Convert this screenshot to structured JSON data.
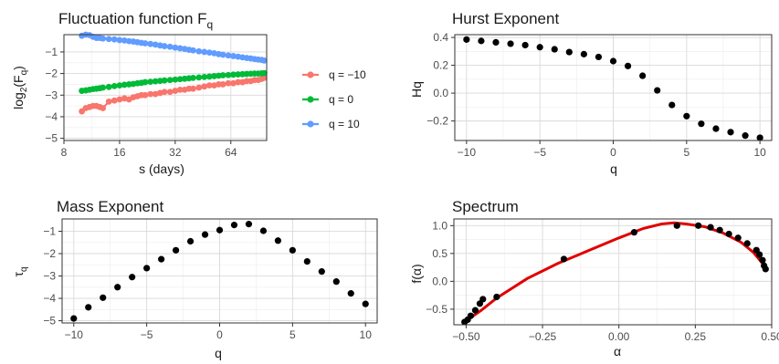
{
  "chart_data": [
    {
      "id": "fluct",
      "type": "scatter",
      "title": "Fluctuation function F",
      "title_sub": "q",
      "xlabel": "s (days)",
      "ylabel_main": "log",
      "ylabel_sub": "2",
      "ylabel_rest": "(F",
      "ylabel_sub2": "q",
      "ylabel_end": ")",
      "x_scale": "log2",
      "xlim": [
        8,
        100
      ],
      "ylim": [
        -5.1,
        -0.2
      ],
      "x_ticks": [
        8,
        16,
        32,
        64
      ],
      "x_tick_labels": [
        "8",
        "16",
        "32",
        "64"
      ],
      "y_ticks": [
        -5,
        -4,
        -3,
        -2,
        -1
      ],
      "y_tick_labels": [
        "−5",
        "−4",
        "−3",
        "−2",
        "−1"
      ],
      "grid": true,
      "legend_position": "right",
      "series": [
        {
          "name": "q = −10",
          "color": "#F8766D",
          "x": [
            10,
            10.5,
            11,
            11.5,
            12,
            12.5,
            13,
            14,
            15,
            16,
            17,
            18,
            19,
            20,
            21,
            22,
            23.5,
            25,
            26.5,
            28,
            30,
            32,
            34,
            36,
            38,
            40,
            43,
            46,
            49,
            52,
            55,
            58,
            62,
            66,
            70,
            74,
            78,
            82,
            86,
            90,
            94,
            97
          ],
          "y": [
            -3.75,
            -3.6,
            -3.55,
            -3.5,
            -3.5,
            -3.55,
            -3.6,
            -3.3,
            -3.25,
            -3.2,
            -3.15,
            -3.2,
            -3.1,
            -3.05,
            -3.0,
            -3.0,
            -2.95,
            -2.95,
            -2.9,
            -2.85,
            -2.85,
            -2.8,
            -2.75,
            -2.75,
            -2.7,
            -2.7,
            -2.65,
            -2.6,
            -2.55,
            -2.55,
            -2.5,
            -2.5,
            -2.45,
            -2.45,
            -2.4,
            -2.4,
            -2.35,
            -2.35,
            -2.3,
            -2.3,
            -2.25,
            -2.2
          ]
        },
        {
          "name": "q = 0",
          "color": "#00BA38",
          "x": [
            10,
            10.5,
            11,
            11.5,
            12,
            12.5,
            13,
            14,
            15,
            16,
            17,
            18,
            19,
            20,
            21,
            22,
            23.5,
            25,
            26.5,
            28,
            30,
            32,
            34,
            36,
            38,
            40,
            43,
            46,
            49,
            52,
            55,
            58,
            62,
            66,
            70,
            74,
            78,
            82,
            86,
            90,
            94,
            97
          ],
          "y": [
            -2.8,
            -2.78,
            -2.75,
            -2.72,
            -2.7,
            -2.68,
            -2.65,
            -2.62,
            -2.58,
            -2.55,
            -2.52,
            -2.5,
            -2.48,
            -2.45,
            -2.43,
            -2.4,
            -2.38,
            -2.36,
            -2.34,
            -2.32,
            -2.3,
            -2.28,
            -2.26,
            -2.24,
            -2.22,
            -2.2,
            -2.18,
            -2.16,
            -2.14,
            -2.12,
            -2.1,
            -2.08,
            -2.07,
            -2.05,
            -2.04,
            -2.03,
            -2.02,
            -2.01,
            -2.0,
            -2.0,
            -1.99,
            -1.98
          ]
        },
        {
          "name": "q = 10",
          "color": "#619CFF",
          "x": [
            10,
            10.5,
            11,
            11.5,
            12,
            12.5,
            13,
            14,
            15,
            16,
            17,
            18,
            19,
            20,
            21,
            22,
            23.5,
            25,
            26.5,
            28,
            30,
            32,
            34,
            36,
            38,
            40,
            43,
            46,
            49,
            52,
            55,
            58,
            62,
            66,
            70,
            74,
            78,
            82,
            86,
            90,
            94,
            97
          ],
          "y": [
            -0.25,
            -0.2,
            -0.22,
            -0.3,
            -0.35,
            -0.35,
            -0.38,
            -0.4,
            -0.42,
            -0.45,
            -0.47,
            -0.5,
            -0.52,
            -0.55,
            -0.58,
            -0.6,
            -0.63,
            -0.66,
            -0.7,
            -0.73,
            -0.76,
            -0.8,
            -0.83,
            -0.86,
            -0.9,
            -0.93,
            -0.97,
            -1.0,
            -1.03,
            -1.06,
            -1.1,
            -1.13,
            -1.16,
            -1.19,
            -1.22,
            -1.25,
            -1.28,
            -1.3,
            -1.33,
            -1.35,
            -1.37,
            -1.4
          ]
        }
      ]
    },
    {
      "id": "hurst",
      "type": "scatter",
      "title": "Hurst Exponent",
      "xlabel": "q",
      "ylabel": "Hq",
      "xlim": [
        -10.8,
        10.8
      ],
      "ylim": [
        -0.34,
        0.42
      ],
      "x_ticks": [
        -10,
        -5,
        0,
        5,
        10
      ],
      "x_tick_labels": [
        "−10",
        "−5",
        "0",
        "5",
        "10"
      ],
      "y_ticks": [
        -0.2,
        0.0,
        0.2,
        0.4
      ],
      "y_tick_labels": [
        "−0.2",
        "0.0",
        "0.2",
        "0.4"
      ],
      "grid": true,
      "color": "#000000",
      "x": [
        -10,
        -9,
        -8,
        -7,
        -6,
        -5,
        -4,
        -3,
        -2,
        -1,
        0,
        1,
        2,
        3,
        4,
        5,
        6,
        7,
        8,
        9,
        10
      ],
      "y": [
        0.385,
        0.375,
        0.365,
        0.355,
        0.345,
        0.33,
        0.315,
        0.295,
        0.28,
        0.26,
        0.23,
        0.195,
        0.125,
        0.02,
        -0.085,
        -0.165,
        -0.22,
        -0.255,
        -0.28,
        -0.305,
        -0.32
      ]
    },
    {
      "id": "mass",
      "type": "scatter",
      "title": "Mass Exponent",
      "xlabel": "q",
      "ylabel_main": "τ",
      "ylabel_sub": "q",
      "xlim": [
        -10.8,
        10.8
      ],
      "ylim": [
        -5.1,
        -0.45
      ],
      "x_ticks": [
        -10,
        -5,
        0,
        5,
        10
      ],
      "x_tick_labels": [
        "−10",
        "−5",
        "0",
        "5",
        "10"
      ],
      "y_ticks": [
        -5,
        -4,
        -3,
        -2,
        -1
      ],
      "y_tick_labels": [
        "−5",
        "−4",
        "−3",
        "−2",
        "−1"
      ],
      "grid": true,
      "color": "#000000",
      "x": [
        -10,
        -9,
        -8,
        -7,
        -6,
        -5,
        -4,
        -3,
        -2,
        -1,
        0,
        1,
        2,
        3,
        4,
        5,
        6,
        7,
        8,
        9,
        10
      ],
      "y": [
        -4.9,
        -4.4,
        -3.97,
        -3.5,
        -3.05,
        -2.65,
        -2.25,
        -1.85,
        -1.45,
        -1.15,
        -0.95,
        -0.72,
        -0.68,
        -0.98,
        -1.42,
        -1.85,
        -2.35,
        -2.8,
        -3.25,
        -3.78,
        -4.25
      ]
    },
    {
      "id": "spectrum",
      "type": "scatter",
      "title": "Spectrum",
      "xlabel": "α",
      "ylabel": "f(α)",
      "xlim": [
        -0.54,
        0.5
      ],
      "ylim": [
        -0.78,
        1.12
      ],
      "x_ticks": [
        -0.5,
        -0.25,
        0.0,
        0.25,
        0.5
      ],
      "x_tick_labels": [
        "−0.50",
        "−0.25",
        "0.00",
        "0.25",
        "0.50"
      ],
      "y_ticks": [
        -0.5,
        0.0,
        0.5,
        1.0
      ],
      "y_tick_labels": [
        "−0.5",
        "0.0",
        "0.5",
        "1.0"
      ],
      "grid": true,
      "color": "#000000",
      "curve_color": "#E00000",
      "x": [
        -0.505,
        -0.495,
        -0.485,
        -0.47,
        -0.455,
        -0.445,
        -0.4,
        -0.18,
        0.05,
        0.19,
        0.26,
        0.3,
        0.33,
        0.36,
        0.39,
        0.42,
        0.45,
        0.46,
        0.47,
        0.475,
        0.48
      ],
      "y": [
        -0.73,
        -0.69,
        -0.62,
        -0.52,
        -0.4,
        -0.32,
        -0.28,
        0.4,
        0.88,
        1.0,
        1.0,
        0.97,
        0.92,
        0.85,
        0.78,
        0.68,
        0.56,
        0.48,
        0.38,
        0.28,
        0.22
      ],
      "curve_x": [
        -0.505,
        -0.45,
        -0.4,
        -0.3,
        -0.2,
        -0.1,
        0.0,
        0.08,
        0.14,
        0.18,
        0.22,
        0.28,
        0.34,
        0.4,
        0.44,
        0.47,
        0.48
      ],
      "curve_y": [
        -0.73,
        -0.52,
        -0.3,
        0.05,
        0.32,
        0.55,
        0.78,
        0.95,
        1.03,
        1.05,
        1.03,
        0.98,
        0.87,
        0.7,
        0.52,
        0.32,
        0.24
      ]
    }
  ]
}
